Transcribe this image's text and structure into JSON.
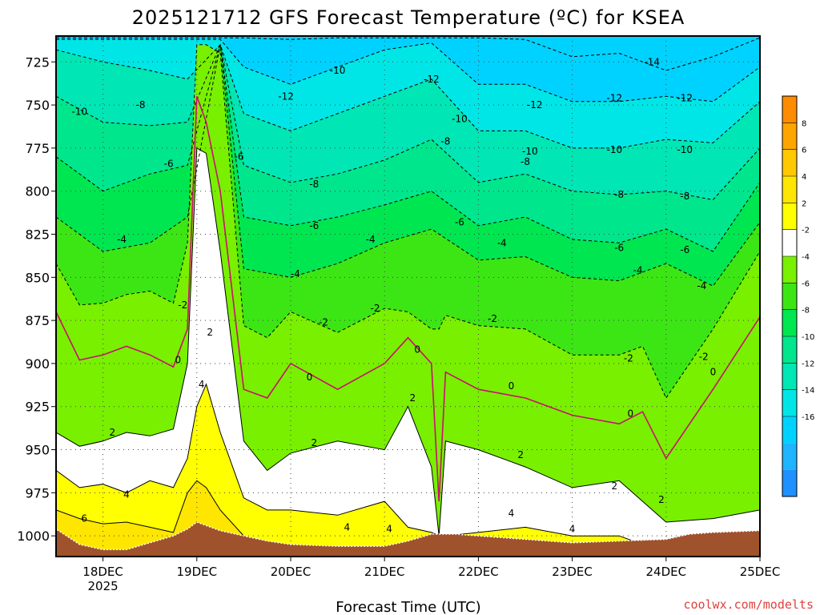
{
  "title": "2025121712 GFS Forecast Temperature (ºC) for KSEA",
  "credit": "coolwx.com/modelts",
  "chart_data": {
    "type": "heatmap",
    "title": "2025121712 GFS Forecast Temperature (ºC) for KSEA",
    "xlabel": "Forecast Time (UTC)",
    "ylabel": "",
    "x_ticks": [
      "18DEC",
      "19DEC",
      "20DEC",
      "21DEC",
      "22DEC",
      "23DEC",
      "24DEC",
      "25DEC"
    ],
    "x_tick_sub": {
      "18DEC": "2025"
    },
    "xlim_days": [
      17.5,
      25.0
    ],
    "y_ticks": [
      725,
      750,
      775,
      800,
      825,
      850,
      875,
      900,
      925,
      950,
      975,
      1000
    ],
    "ylim": [
      1012,
      710
    ],
    "grid": true,
    "colorbar": {
      "labels": [
        8,
        6,
        4,
        2,
        -2,
        -4,
        -6,
        -8,
        -10,
        -12,
        -14,
        -16
      ],
      "levels": [
        -18,
        -16,
        -14,
        -12,
        -10,
        -8,
        -6,
        -4,
        -2,
        2,
        4,
        6,
        8,
        10
      ],
      "colors": [
        "#1e90ff",
        "#1eb4ff",
        "#00d2ff",
        "#00e6e6",
        "#00e6b4",
        "#00e68c",
        "#00e650",
        "#3ce614",
        "#78f000",
        "#ffffff",
        "#ffff00",
        "#ffe600",
        "#ffc800",
        "#ffa500",
        "#ff8c00"
      ]
    },
    "ground_color": "#a0522d",
    "series": [
      {
        "name": "isotherm",
        "level": 8,
        "x": [
          17.5,
          17.75,
          18.0,
          18.25,
          18.5,
          18.75,
          18.9,
          19.0,
          19.1,
          19.25,
          19.5,
          19.75,
          20.0,
          20.5,
          21.0,
          21.25,
          21.5,
          21.58,
          21.65,
          22.0,
          22.5,
          23.0,
          23.5,
          23.75,
          24.0,
          24.5,
          25.0
        ],
        "y": [
          1010,
          1010,
          1010,
          1010,
          1010,
          1010,
          1005,
          998,
          1000,
          1010,
          1010,
          1010,
          1010,
          1010,
          1010,
          1010,
          1010,
          1010,
          1010,
          1010,
          1010,
          1010,
          1010,
          1010,
          1010,
          1010,
          1010
        ]
      },
      {
        "name": "isotherm",
        "level": 6,
        "x": [
          17.5,
          17.75,
          18.0,
          18.25,
          18.5,
          18.75,
          18.9,
          19.0,
          19.1,
          19.25,
          19.5,
          19.75,
          20.0,
          20.5,
          21.0,
          21.25,
          21.5,
          21.58,
          21.65,
          22.0,
          22.5,
          23.0,
          23.5,
          23.75,
          24.0,
          24.5,
          25.0
        ],
        "y": [
          985,
          990,
          993,
          992,
          995,
          998,
          975,
          968,
          972,
          985,
          1000,
          1008,
          1010,
          1010,
          1010,
          1010,
          1010,
          1010,
          1010,
          1010,
          1010,
          1010,
          1010,
          1010,
          1010,
          1010,
          1010
        ]
      },
      {
        "name": "isotherm",
        "level": 4,
        "x": [
          17.5,
          17.75,
          18.0,
          18.25,
          18.5,
          18.75,
          18.9,
          19.0,
          19.1,
          19.25,
          19.5,
          19.75,
          20.0,
          20.5,
          21.0,
          21.25,
          21.5,
          21.58,
          21.65,
          22.0,
          22.5,
          23.0,
          23.5,
          23.75,
          24.0,
          24.5,
          25.0
        ],
        "y": [
          962,
          972,
          970,
          975,
          968,
          972,
          955,
          925,
          912,
          940,
          978,
          985,
          985,
          988,
          980,
          995,
          998,
          1000,
          1000,
          998,
          995,
          1000,
          1000,
          1005,
          1008,
          1008,
          1008
        ]
      },
      {
        "name": "isotherm",
        "level": 2,
        "x": [
          17.5,
          17.75,
          18.0,
          18.25,
          18.5,
          18.75,
          18.9,
          19.0,
          19.1,
          19.25,
          19.5,
          19.75,
          20.0,
          20.5,
          21.0,
          21.25,
          21.5,
          21.58,
          21.65,
          22.0,
          22.5,
          23.0,
          23.5,
          23.75,
          24.0,
          24.5,
          25.0
        ],
        "y": [
          940,
          948,
          945,
          940,
          942,
          938,
          900,
          775,
          778,
          835,
          945,
          962,
          952,
          945,
          950,
          925,
          960,
          1000,
          945,
          950,
          960,
          972,
          968,
          980,
          992,
          990,
          985
        ]
      },
      {
        "name": "isotherm",
        "level": 0,
        "x": [
          17.5,
          17.75,
          18.0,
          18.25,
          18.5,
          18.75,
          18.9,
          19.0,
          19.1,
          19.25,
          19.5,
          19.75,
          20.0,
          20.5,
          21.0,
          21.25,
          21.5,
          21.58,
          21.65,
          22.0,
          22.5,
          23.0,
          23.5,
          23.75,
          24.0,
          24.5,
          25.0
        ],
        "y": [
          870,
          898,
          895,
          890,
          895,
          902,
          880,
          745,
          760,
          800,
          915,
          920,
          900,
          915,
          900,
          885,
          900,
          980,
          905,
          915,
          920,
          930,
          935,
          928,
          955,
          915,
          873
        ]
      },
      {
        "name": "isotherm",
        "level": -2,
        "x": [
          17.5,
          17.75,
          18.0,
          18.25,
          18.5,
          18.75,
          18.9,
          19.0,
          19.1,
          19.25,
          19.5,
          19.75,
          20.0,
          20.5,
          21.0,
          21.25,
          21.5,
          21.58,
          21.65,
          22.0,
          22.5,
          23.0,
          23.5,
          23.75,
          24.0,
          24.5,
          25.0
        ],
        "y": [
          842,
          866,
          865,
          860,
          858,
          865,
          830,
          715,
          715,
          720,
          878,
          885,
          870,
          882,
          868,
          870,
          880,
          880,
          872,
          878,
          880,
          895,
          895,
          890,
          920,
          880,
          835
        ]
      },
      {
        "name": "isotherm",
        "level": -4,
        "x": [
          17.5,
          18.0,
          18.5,
          18.9,
          19.25,
          19.5,
          20.0,
          20.5,
          21.0,
          21.5,
          22.0,
          22.5,
          23.0,
          23.5,
          24.0,
          24.5,
          25.0
        ],
        "y": [
          815,
          835,
          830,
          815,
          715,
          845,
          850,
          842,
          830,
          822,
          840,
          838,
          850,
          852,
          842,
          855,
          818
        ]
      },
      {
        "name": "isotherm",
        "level": -6,
        "x": [
          17.5,
          18.0,
          18.5,
          18.9,
          19.25,
          19.5,
          20.0,
          20.5,
          21.0,
          21.5,
          22.0,
          22.5,
          23.0,
          23.5,
          24.0,
          24.5,
          25.0
        ],
        "y": [
          780,
          800,
          790,
          785,
          715,
          815,
          820,
          815,
          808,
          800,
          820,
          815,
          828,
          830,
          822,
          835,
          795
        ]
      },
      {
        "name": "isotherm",
        "level": -8,
        "x": [
          17.5,
          18.0,
          18.5,
          18.9,
          19.25,
          19.5,
          20.0,
          20.5,
          21.0,
          21.5,
          22.0,
          22.5,
          23.0,
          23.5,
          24.0,
          24.5,
          25.0
        ],
        "y": [
          745,
          760,
          762,
          760,
          715,
          785,
          795,
          790,
          782,
          770,
          795,
          790,
          800,
          802,
          800,
          805,
          775
        ]
      },
      {
        "name": "isotherm",
        "level": -10,
        "x": [
          17.5,
          18.0,
          18.5,
          18.9,
          19.25,
          19.5,
          20.0,
          20.5,
          21.0,
          21.5,
          22.0,
          22.5,
          23.0,
          23.5,
          24.0,
          24.5,
          25.0
        ],
        "y": [
          718,
          725,
          730,
          735,
          715,
          755,
          765,
          755,
          745,
          735,
          765,
          765,
          775,
          775,
          770,
          772,
          748
        ]
      },
      {
        "name": "isotherm",
        "level": -12,
        "x": [
          17.5,
          18.0,
          18.5,
          18.9,
          19.25,
          19.5,
          20.0,
          20.5,
          21.0,
          21.5,
          22.0,
          22.5,
          23.0,
          23.5,
          24.0,
          24.5,
          25.0
        ],
        "y": [
          712,
          712,
          712,
          712,
          712,
          728,
          738,
          728,
          718,
          714,
          738,
          738,
          748,
          748,
          745,
          748,
          728
        ]
      },
      {
        "name": "isotherm",
        "level": -14,
        "x": [
          17.5,
          19.5,
          20.0,
          20.5,
          21.0,
          21.5,
          22.0,
          22.5,
          23.0,
          23.5,
          24.0,
          24.5,
          25.0
        ],
        "y": [
          711,
          711,
          712,
          711,
          711,
          711,
          711,
          712,
          722,
          720,
          730,
          722,
          711
        ]
      }
    ],
    "surface": {
      "x": [
        17.5,
        17.75,
        18.0,
        18.25,
        18.5,
        18.75,
        18.9,
        19.0,
        19.1,
        19.25,
        19.5,
        19.75,
        20.0,
        20.5,
        21.0,
        21.25,
        21.5,
        21.75,
        22.0,
        22.5,
        23.0,
        23.5,
        24.0,
        24.25,
        24.5,
        25.0
      ],
      "y": [
        996,
        1005,
        1008,
        1008,
        1004,
        1000,
        996,
        992,
        994,
        997,
        1000,
        1003,
        1005,
        1006,
        1006,
        1003,
        999,
        999,
        1000,
        1002,
        1004,
        1003,
        1002,
        999,
        998,
        997
      ]
    },
    "contour_labels": [
      {
        "text": "-10",
        "x": 17.75,
        "y": 754
      },
      {
        "text": "-8",
        "x": 18.4,
        "y": 750
      },
      {
        "text": "-6",
        "x": 18.7,
        "y": 784
      },
      {
        "text": "-4",
        "x": 18.2,
        "y": 828
      },
      {
        "text": "-2",
        "x": 18.85,
        "y": 866
      },
      {
        "text": "0",
        "x": 18.8,
        "y": 898
      },
      {
        "text": "2",
        "x": 18.1,
        "y": 940
      },
      {
        "text": "4",
        "x": 18.25,
        "y": 976
      },
      {
        "text": "6",
        "x": 17.8,
        "y": 990
      },
      {
        "text": "2",
        "x": 19.14,
        "y": 882
      },
      {
        "text": "4",
        "x": 19.05,
        "y": 912
      },
      {
        "text": "-6",
        "x": 19.45,
        "y": 780
      },
      {
        "text": "-12",
        "x": 19.95,
        "y": 745
      },
      {
        "text": "-10",
        "x": 20.5,
        "y": 730
      },
      {
        "text": "-8",
        "x": 20.25,
        "y": 796
      },
      {
        "text": "-6",
        "x": 20.25,
        "y": 820
      },
      {
        "text": "-4",
        "x": 20.05,
        "y": 848
      },
      {
        "text": "-2",
        "x": 20.35,
        "y": 876
      },
      {
        "text": "0",
        "x": 20.2,
        "y": 908
      },
      {
        "text": "2",
        "x": 20.25,
        "y": 946
      },
      {
        "text": "4",
        "x": 20.6,
        "y": 995
      },
      {
        "text": "-4",
        "x": 20.85,
        "y": 828
      },
      {
        "text": "-2",
        "x": 20.9,
        "y": 868
      },
      {
        "text": "0",
        "x": 21.35,
        "y": 892
      },
      {
        "text": "2",
        "x": 21.3,
        "y": 920
      },
      {
        "text": "4",
        "x": 21.05,
        "y": 996
      },
      {
        "text": "-12",
        "x": 21.5,
        "y": 735
      },
      {
        "text": "-10",
        "x": 21.8,
        "y": 758
      },
      {
        "text": "-8",
        "x": 21.65,
        "y": 771
      },
      {
        "text": "-6",
        "x": 21.8,
        "y": 818
      },
      {
        "text": "-4",
        "x": 22.25,
        "y": 830
      },
      {
        "text": "-2",
        "x": 22.15,
        "y": 874
      },
      {
        "text": "0",
        "x": 22.35,
        "y": 913
      },
      {
        "text": "2",
        "x": 22.45,
        "y": 953
      },
      {
        "text": "4",
        "x": 22.35,
        "y": 987
      },
      {
        "text": "-12",
        "x": 22.6,
        "y": 750
      },
      {
        "text": "-10",
        "x": 22.55,
        "y": 777
      },
      {
        "text": "-8",
        "x": 22.5,
        "y": 783
      },
      {
        "text": "4",
        "x": 23.0,
        "y": 996
      },
      {
        "text": "-12",
        "x": 23.45,
        "y": 746
      },
      {
        "text": "-10",
        "x": 23.45,
        "y": 776
      },
      {
        "text": "-8",
        "x": 23.5,
        "y": 802
      },
      {
        "text": "-6",
        "x": 23.5,
        "y": 833
      },
      {
        "text": "-4",
        "x": 23.7,
        "y": 846
      },
      {
        "text": "-2",
        "x": 23.6,
        "y": 897
      },
      {
        "text": "0",
        "x": 23.62,
        "y": 929
      },
      {
        "text": "2",
        "x": 23.45,
        "y": 971
      },
      {
        "text": "2",
        "x": 23.95,
        "y": 979
      },
      {
        "text": "-14",
        "x": 23.85,
        "y": 725
      },
      {
        "text": "-12",
        "x": 24.2,
        "y": 746
      },
      {
        "text": "-10",
        "x": 24.2,
        "y": 776
      },
      {
        "text": "-8",
        "x": 24.2,
        "y": 803
      },
      {
        "text": "-6",
        "x": 24.2,
        "y": 834
      },
      {
        "text": "-4",
        "x": 24.38,
        "y": 855
      },
      {
        "text": "-2",
        "x": 24.4,
        "y": 896
      },
      {
        "text": "0",
        "x": 24.5,
        "y": 905
      }
    ]
  }
}
